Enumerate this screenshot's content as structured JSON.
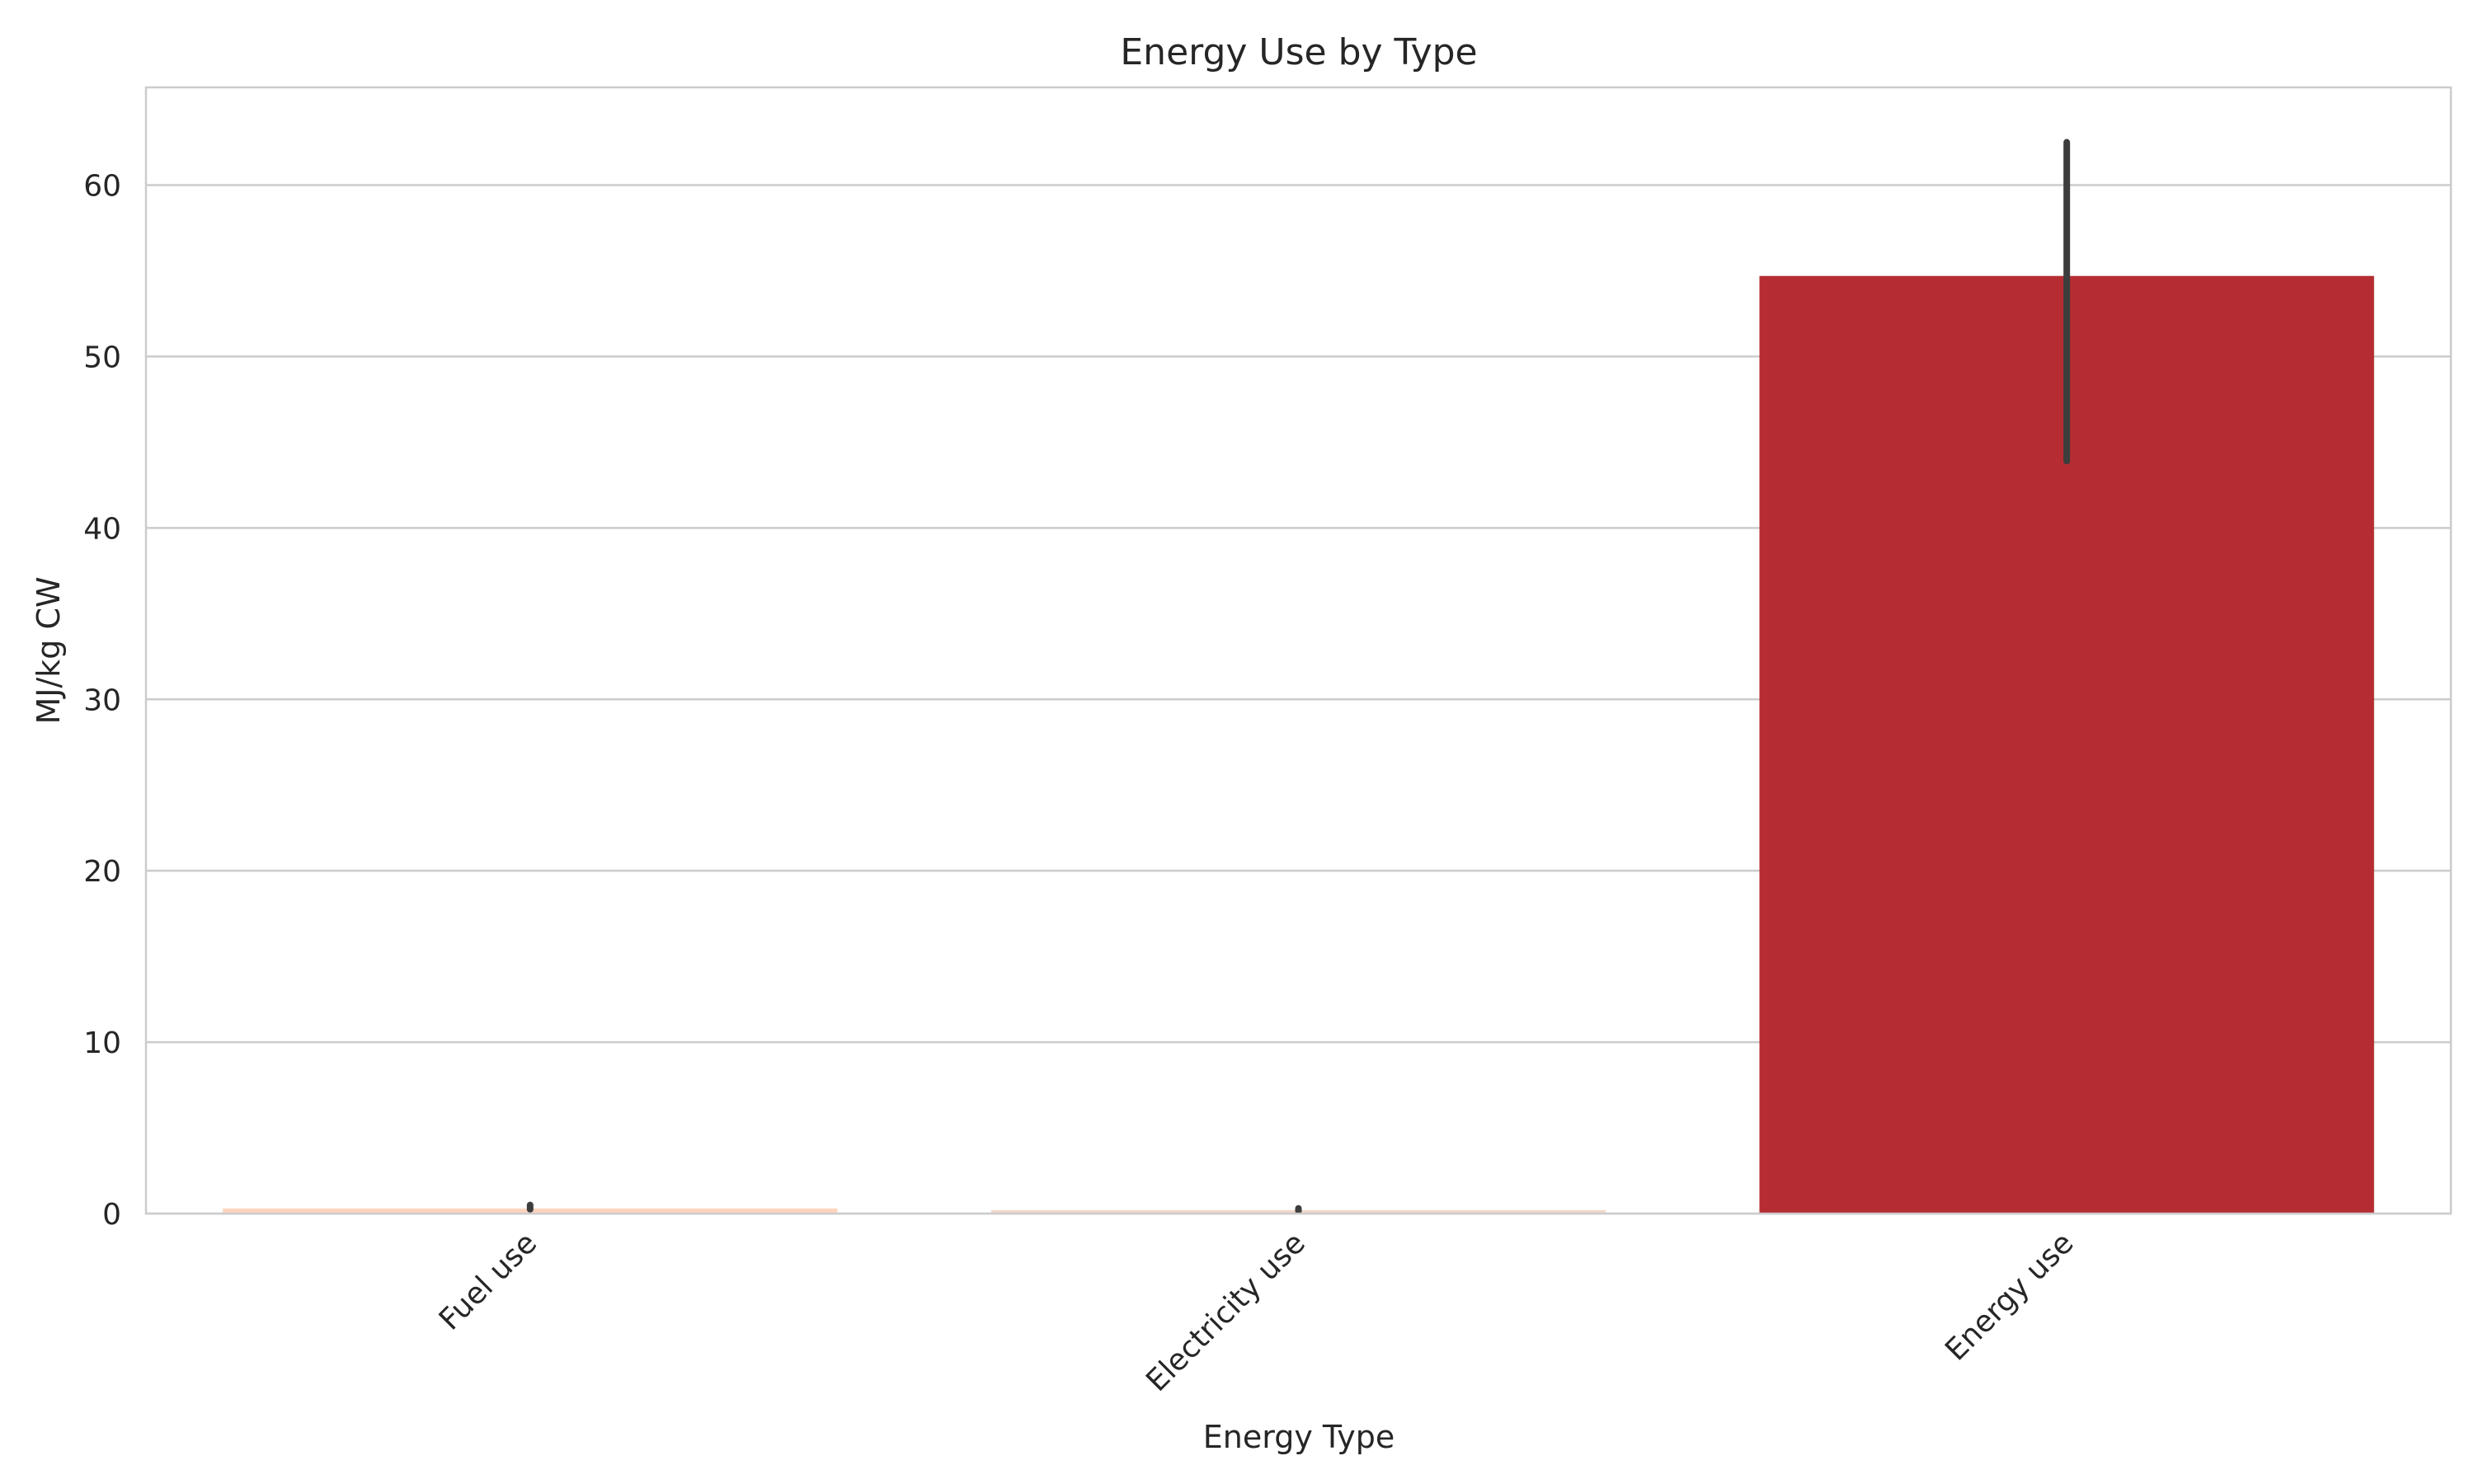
{
  "chart_data": {
    "type": "bar",
    "title": "Energy Use by Type",
    "xlabel": "Energy Type",
    "ylabel": "MJ/kg CW",
    "categories": [
      "Fuel use",
      "Electricity use",
      "Energy use"
    ],
    "values": [
      0.3,
      0.2,
      54.7
    ],
    "error_bars": [
      {
        "low": 0.25,
        "high": 0.5
      },
      {
        "low": 0.15,
        "high": 0.3
      },
      {
        "low": 43.9,
        "high": 62.5
      }
    ],
    "bar_colors": [
      "#fcd5bf",
      "#f2d7c9",
      "#b52d32"
    ],
    "error_bar_color": "#3d3d3d",
    "ylim": [
      0,
      65.7
    ],
    "yticks": [
      0,
      10,
      20,
      30,
      40,
      50,
      60
    ],
    "grid": true,
    "colors": {
      "grid": "#cccccc",
      "axes_edge": "#cccccc",
      "text": "#262626"
    }
  }
}
